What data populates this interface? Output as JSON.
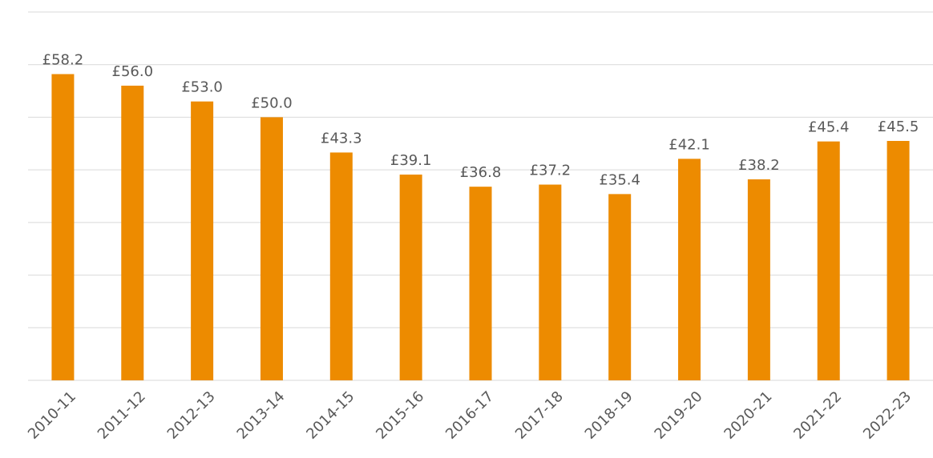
{
  "chart_data": {
    "type": "bar",
    "categories": [
      "2010-11",
      "2011-12",
      "2012-13",
      "2013-14",
      "2014-15",
      "2015-16",
      "2016-17",
      "2017-18",
      "2018-19",
      "2019-20",
      "2020-21",
      "2021-22",
      "2022-23"
    ],
    "values": [
      58.2,
      56.0,
      53.0,
      50.0,
      43.3,
      39.1,
      36.8,
      37.2,
      35.4,
      42.1,
      38.2,
      45.4,
      45.5
    ],
    "value_labels": [
      "£58.2",
      "£56.0",
      "£53.0",
      "£50.0",
      "£43.3",
      "£39.1",
      "£36.8",
      "£37.2",
      "£35.4",
      "£42.1",
      "£38.2",
      "£45.4",
      "£45.5"
    ],
    "color": "#ED8B00",
    "ylim": [
      0,
      70
    ],
    "yticks": [
      0,
      10,
      20,
      30,
      40,
      50,
      60,
      70
    ],
    "grid": true
  }
}
